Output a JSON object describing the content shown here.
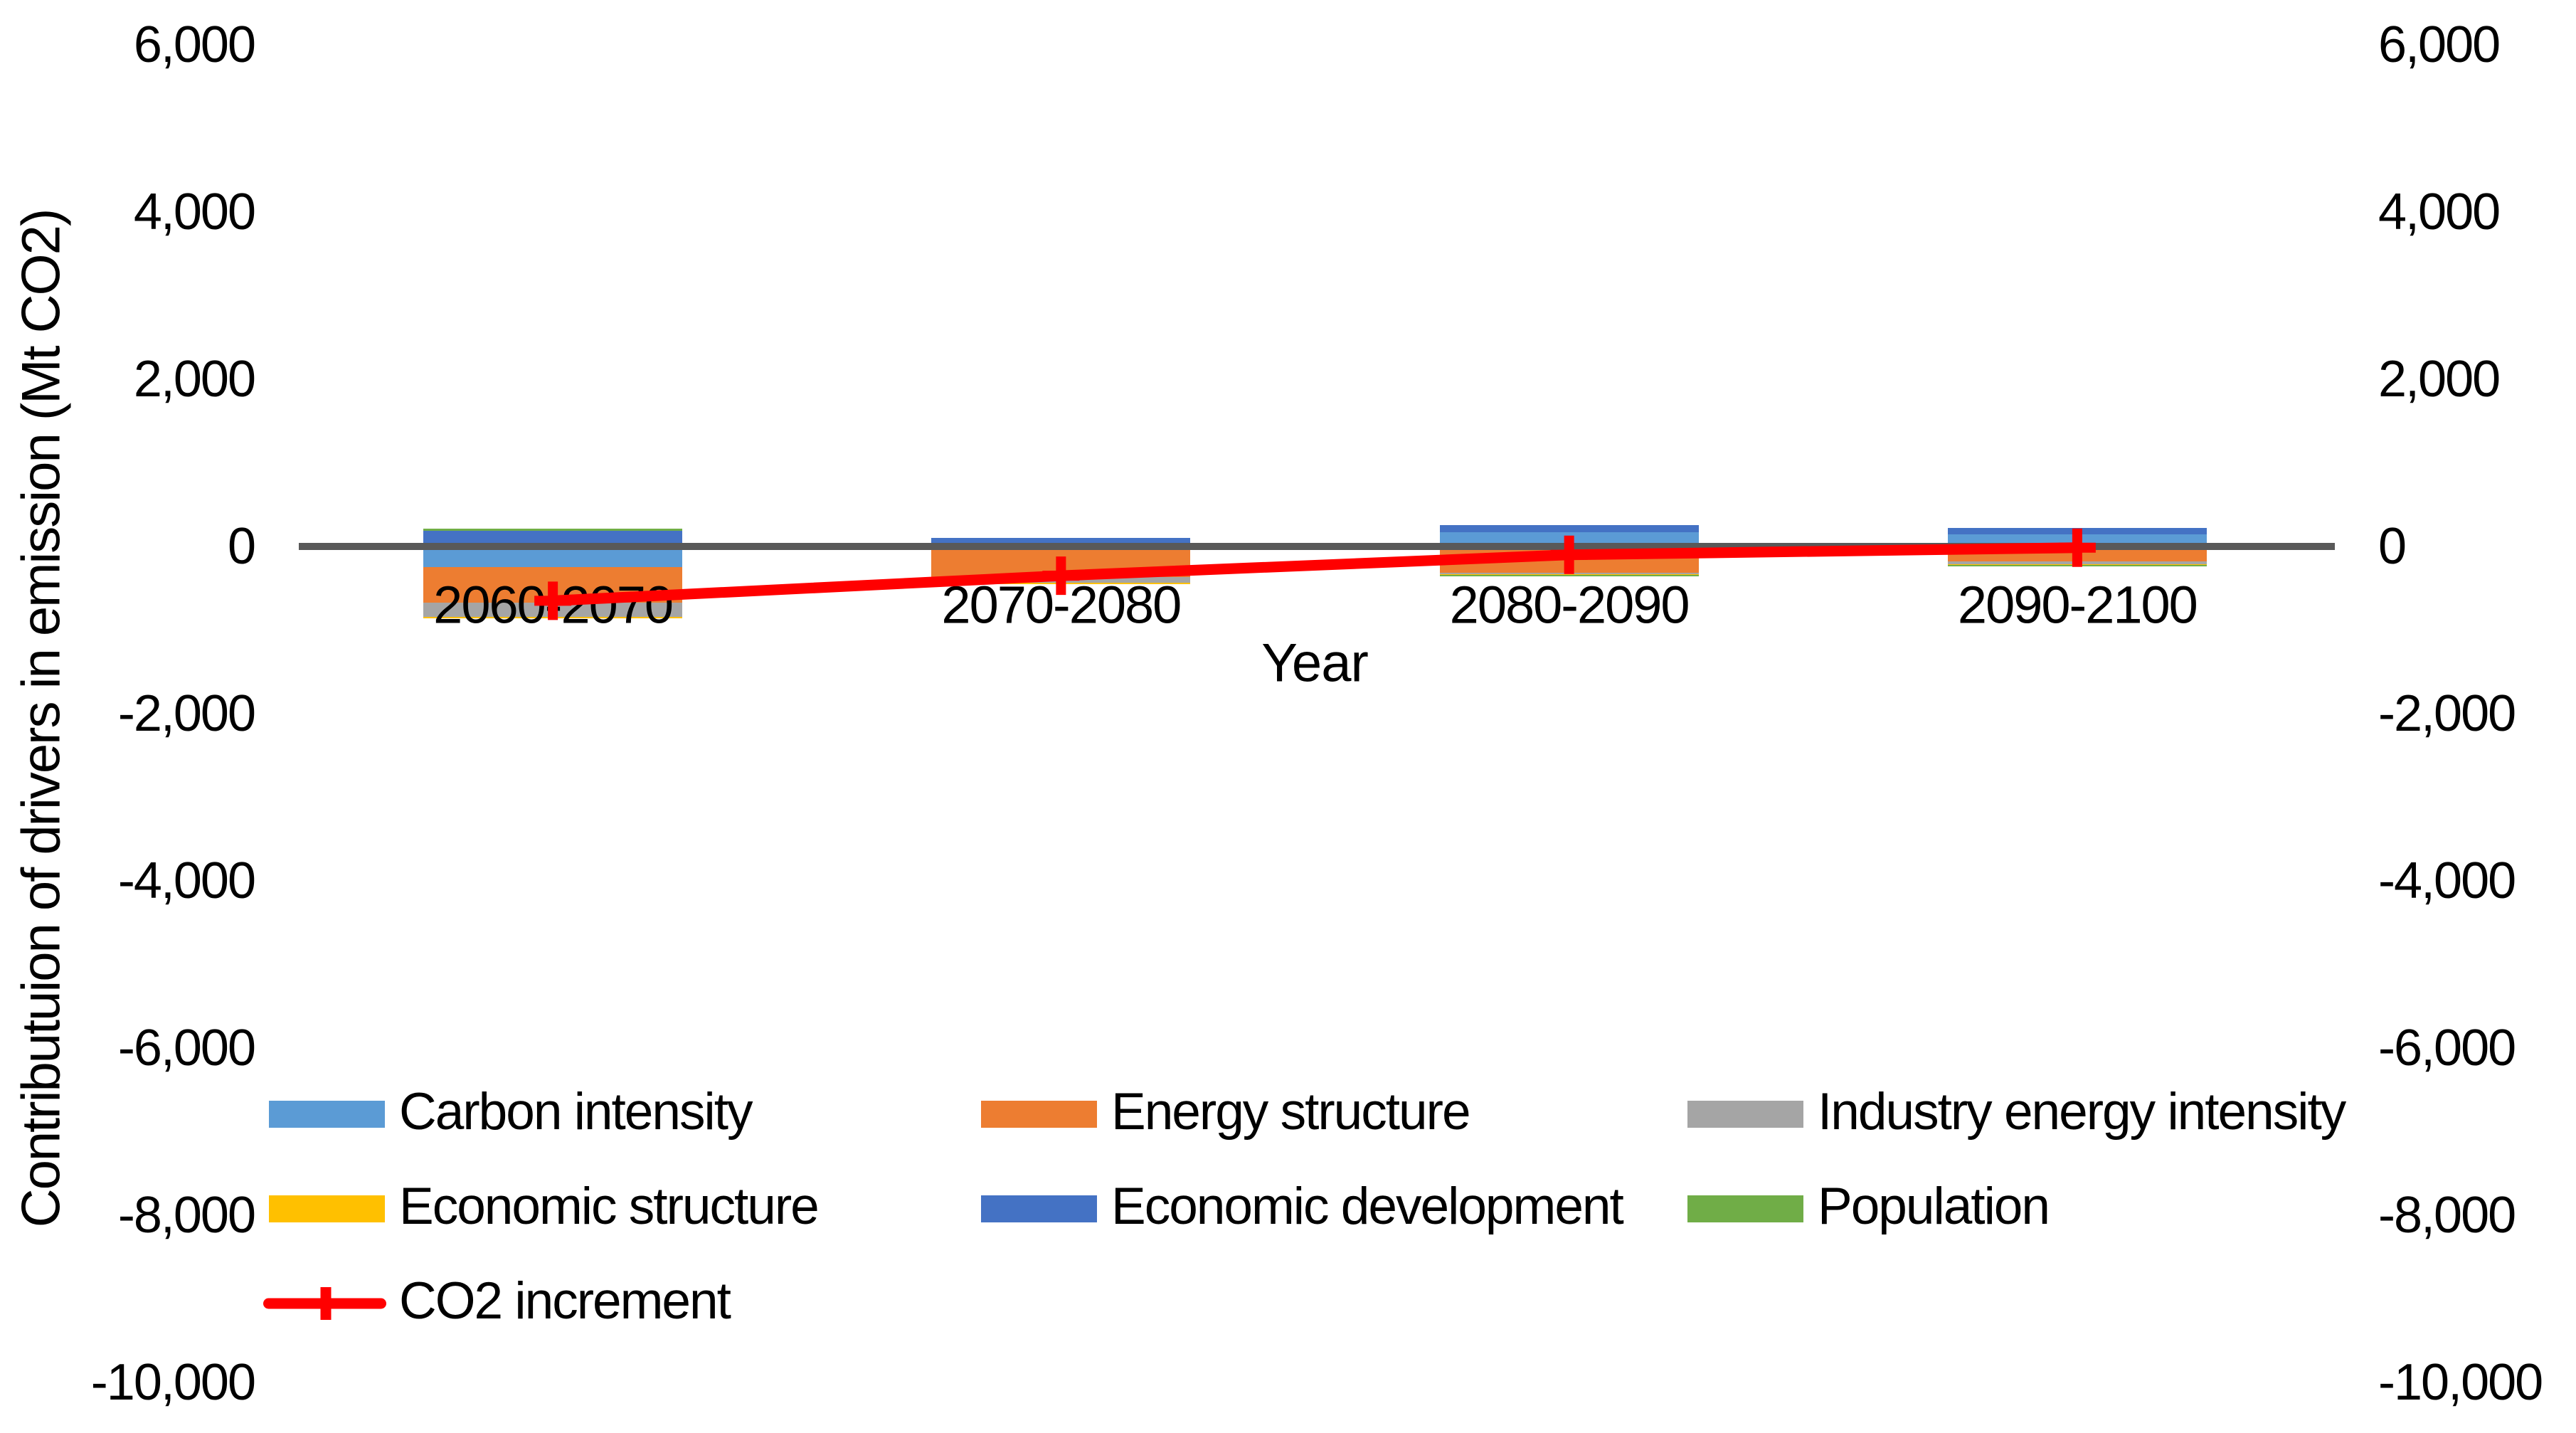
{
  "chart_data": {
    "type": "bar",
    "subtype": "stacked-bars-with-line-overlay",
    "title": "",
    "xlabel": "Year",
    "ylabel": "Contributuion of drivers in emission (Mt CO2)",
    "categories": [
      "2060-2070",
      "2070-2080",
      "2080-2090",
      "2090-2100"
    ],
    "series": [
      {
        "name": "Carbon intensity",
        "color": "#5B9BD5",
        "values": [
          -250,
          0,
          170,
          145
        ]
      },
      {
        "name": "Energy structure",
        "color": "#ED7D31",
        "values": [
          -425,
          -370,
          -315,
          -180
        ]
      },
      {
        "name": "Industry energy intensity",
        "color": "#A5A5A5",
        "values": [
          -165,
          -65,
          -20,
          -35
        ]
      },
      {
        "name": "Economic structure",
        "color": "#FFC000",
        "values": [
          -20,
          -15,
          -5,
          -5
        ]
      },
      {
        "name": "Economic development",
        "color": "#4472C4",
        "values": [
          190,
          100,
          85,
          75
        ]
      },
      {
        "name": "Population",
        "color": "#70AD47",
        "values": [
          20,
          0,
          -15,
          -15
        ]
      }
    ],
    "line_series": {
      "name": "CO2 increment",
      "color": "#FF0000",
      "marker": "plus",
      "values": [
        -650,
        -350,
        -100,
        -15
      ]
    },
    "ylim": [
      -10000,
      6000
    ],
    "ytick_step": 2000,
    "ytick_labels": [
      "6,000",
      "4,000",
      "2,000",
      "0",
      "-2,000",
      "-4,000",
      "-6,000",
      "-8,000",
      "-10,000"
    ],
    "dual_value_axis": true,
    "grid": false,
    "legend_position": "bottom-left",
    "axis_line_color": "#595959",
    "background_color": "#FFFFFF",
    "text_color": "#000000"
  }
}
